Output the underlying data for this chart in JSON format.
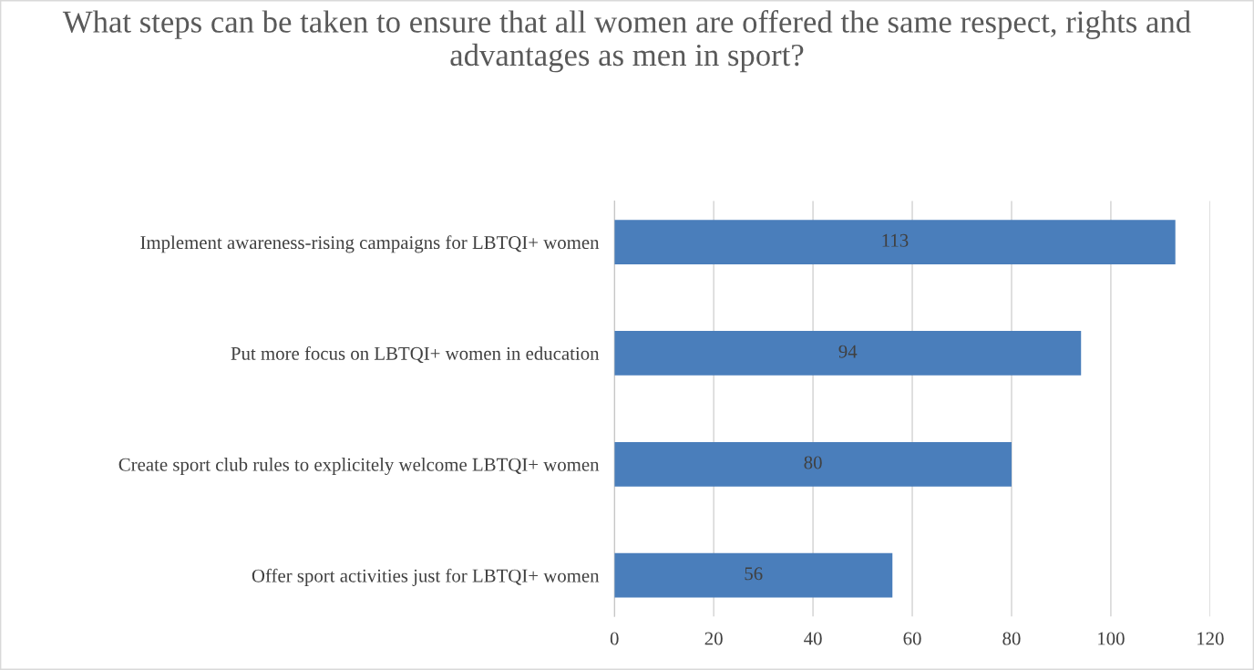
{
  "chart_data": {
    "type": "bar",
    "orientation": "horizontal",
    "title": "What steps can be taken to ensure that all women are offered the same respect, rights and advantages as men in sport?",
    "categories": [
      "Implement awareness-rising campaigns for LBTQI+ women",
      "Put more focus on LBTQI+ women in education",
      "Create sport club rules to explicitely welcome LBTQI+ women",
      "Offer sport activities just for LBTQI+ women"
    ],
    "values": [
      113,
      94,
      80,
      56
    ],
    "color": "#4a7ebb",
    "xlim": [
      0,
      120
    ],
    "xticks": [
      0,
      20,
      40,
      60,
      80,
      100,
      120
    ],
    "grid": "x",
    "data_labels": true
  }
}
